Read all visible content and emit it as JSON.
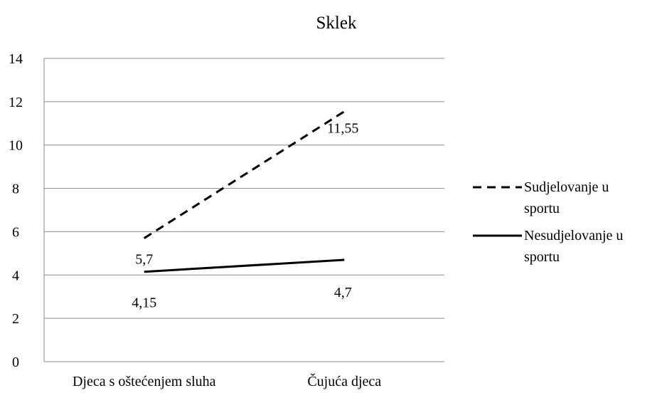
{
  "chart_data": {
    "type": "line",
    "title": "Sklek",
    "xlabel": "",
    "ylabel": "",
    "categories": [
      "Djeca s oštećenjem sluha",
      "Čujuća djeca"
    ],
    "ylim": [
      0,
      14
    ],
    "yticks": [
      "0",
      "2",
      "4",
      "6",
      "8",
      "10",
      "12",
      "14"
    ],
    "grid": true,
    "legend_position": "right",
    "series": [
      {
        "name": "Sudjelovanje u sportu",
        "name_lines": [
          "Sudjelovanje u",
          "sportu"
        ],
        "values": [
          5.7,
          11.55
        ],
        "labels": [
          "5,7",
          "11,55"
        ],
        "line_style": "dashed",
        "color": "#000000"
      },
      {
        "name": "Nesudjelovanje u sportu",
        "name_lines": [
          "Nesudjelovanje u",
          "sportu"
        ],
        "values": [
          4.15,
          4.7
        ],
        "labels": [
          "4,15",
          "4,7"
        ],
        "line_style": "solid",
        "color": "#000000"
      }
    ]
  }
}
